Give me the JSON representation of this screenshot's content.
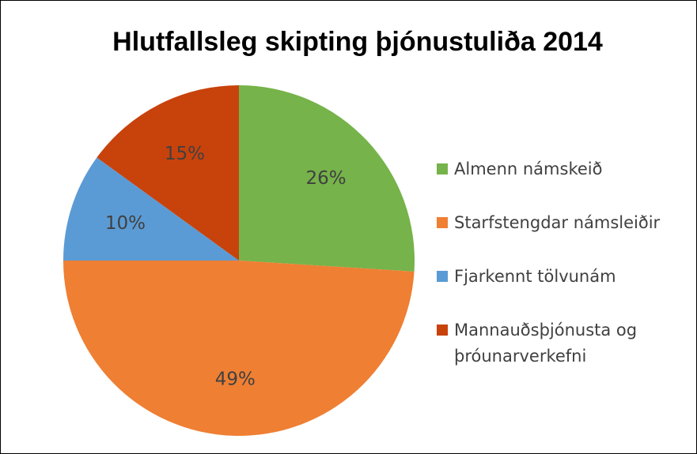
{
  "chart_data": {
    "type": "pie",
    "title": "Hlutfallsleg skipting þjónustuliða 2014",
    "categories": [
      "Almenn námskeið",
      "Starfstengdar námsleiðir",
      "Fjarkennt tölvunám",
      "Mannauðsþjónusta og þróunarverkefni"
    ],
    "values": [
      26,
      49,
      10,
      15
    ],
    "value_labels": [
      "26%",
      "49%",
      "10%",
      "15%"
    ],
    "colors": [
      "#76b34a",
      "#ef7f33",
      "#5b9bd5",
      "#c8420c"
    ],
    "legend": "right"
  }
}
